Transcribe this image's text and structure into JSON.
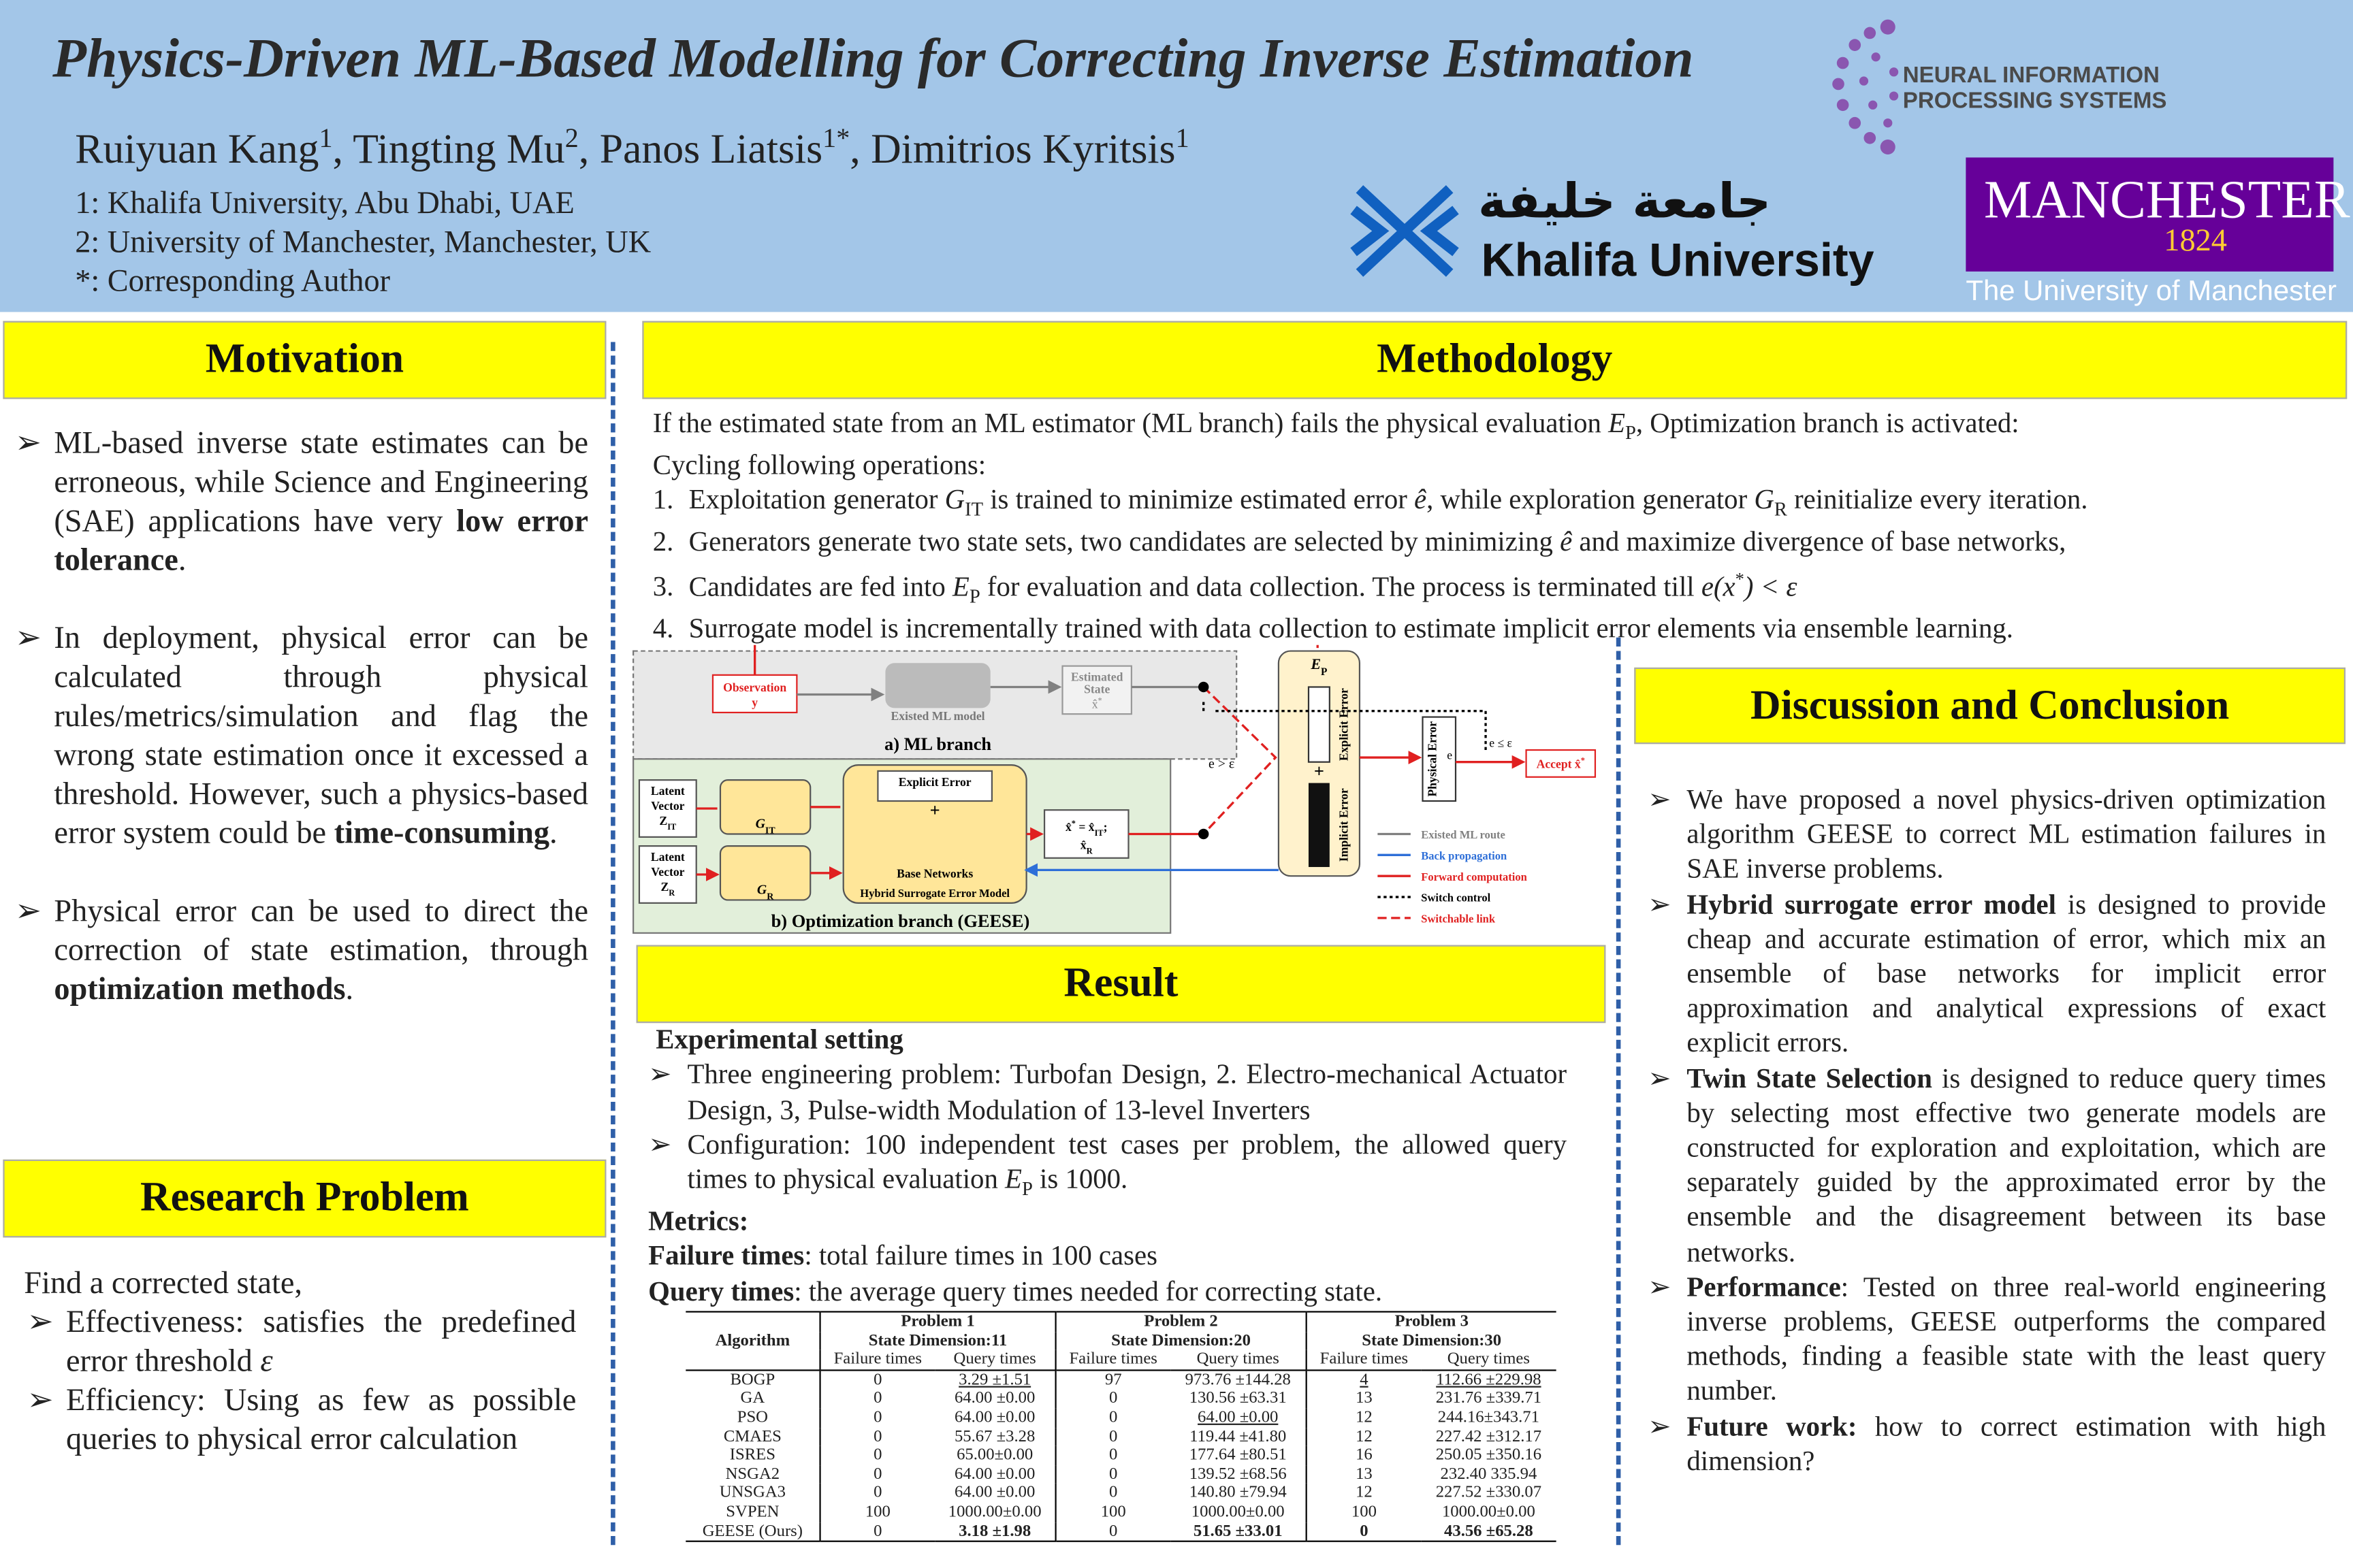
{
  "header": {
    "title": "Physics-Driven ML-Based Modelling for Correcting Inverse Estimation",
    "authors": [
      "Ruiyuan Kang",
      {
        "text": "1",
        "style": "sup"
      },
      ", Tingting Mu",
      {
        "text": "2",
        "style": "sup"
      },
      ", Panos Liatsis",
      {
        "text": "1*",
        "style": "sup"
      },
      ", Dimitrios Kyritsis",
      {
        "text": "1",
        "style": "sup"
      }
    ],
    "affiliations": [
      "1: Khalifa University, Abu Dhabi, UAE",
      "2: University of Manchester, Manchester, UK",
      "*: Corresponding Author"
    ],
    "logos": {
      "neurips": [
        "NEURAL INFORMATION",
        "PROCESSING SYSTEMS"
      ],
      "khalifa": {
        "arabic": "جامعة خليفة",
        "name": "Khalifa University"
      },
      "manchester": {
        "name": "MANCHESTER",
        "year": "1824",
        "caption": "The University of Manchester"
      }
    }
  },
  "motivation": {
    "title": "Motivation",
    "bullets": [
      [
        "ML-based inverse state estimates can be erroneous, while Science and Engineering (SAE) applications have very ",
        {
          "text": "low error tolerance",
          "style": "b"
        },
        "."
      ],
      [
        "In deployment, physical error can be calculated through physical rules/metrics/simulation and flag the wrong state estimation once it excessed a threshold. However, such a physics-based error system could be ",
        {
          "text": "time-consuming",
          "style": "b"
        },
        "."
      ],
      [
        "Physical error can be used to direct the correction of state estimation, through ",
        {
          "text": "optimization methods",
          "style": "b"
        },
        "."
      ]
    ]
  },
  "research": {
    "title": "Research Problem",
    "intro": "Find a corrected state,",
    "bullets": [
      [
        "Effectiveness: satisfies the predefined error threshold ",
        {
          "text": "ε",
          "style": "i"
        }
      ],
      [
        "Efficiency: Using as few as possible queries to physical error calculation"
      ]
    ]
  },
  "methodology": {
    "title": "Methodology",
    "intro": [
      "If the estimated state from an ML estimator (ML branch) fails the physical evaluation ",
      {
        "text": "E",
        "style": "i"
      },
      {
        "text": "P",
        "style": "sub"
      },
      ", Optimization branch is activated:"
    ],
    "cycle": "Cycling following operations:",
    "steps": [
      {
        "num": "1.",
        "text": [
          "Exploitation generator ",
          {
            "text": "G",
            "style": "i"
          },
          {
            "text": "IT",
            "style": "sub"
          },
          " is trained to minimize estimated error ",
          {
            "text": "ê",
            "style": "i"
          },
          ", while exploration generator ",
          {
            "text": "G",
            "style": "i"
          },
          {
            "text": "R",
            "style": "sub"
          },
          " reinitialize every iteration."
        ]
      },
      {
        "num": "2.",
        "text": [
          "Generators generate two state sets, two candidates are selected by minimizing ",
          {
            "text": "ê",
            "style": "i"
          },
          " and maximize divergence of base networks,"
        ]
      },
      {
        "num": "3.",
        "text": [
          "Candidates are fed into ",
          {
            "text": "E",
            "style": "i"
          },
          {
            "text": "P",
            "style": "sub"
          },
          " for evaluation and data collection. The process is terminated till ",
          {
            "text": "e(x",
            "style": "i"
          },
          {
            "text": "*",
            "style": "sup"
          },
          {
            "text": ") < ε",
            "style": "i"
          }
        ]
      },
      {
        "num": "4.",
        "text": [
          "Surrogate model is incrementally trained with data collection to estimate implicit error elements via ensemble learning."
        ]
      }
    ],
    "diagram": {
      "observation": [
        "Observation",
        "y"
      ],
      "ml_model": "Existed ML model",
      "estimated": [
        "Estimated",
        "State",
        [
          "x̂",
          {
            "text": "*",
            "style": "sup"
          }
        ]
      ],
      "ml_branch": "a) ML branch",
      "ep": [
        {
          "text": "E",
          "style": "i"
        },
        {
          "text": "P",
          "style": "sub"
        }
      ],
      "implicit": "Implicit Error",
      "explicit": "Explicit Error",
      "plus": "+",
      "physical": "Physical Error",
      "e": "e",
      "accept_cond": "e ≤ ε",
      "accept": [
        "Accept ",
        "x̂",
        {
          "text": "*",
          "style": "sup"
        }
      ],
      "reject_cond": "e > ε",
      "latent_it": [
        "Latent",
        "Vector",
        [
          "Z",
          {
            "text": "IT",
            "style": "sub"
          }
        ]
      ],
      "latent_r": [
        "Latent",
        "Vector",
        [
          "Z",
          {
            "text": "R",
            "style": "sub"
          }
        ]
      ],
      "g_it": [
        {
          "text": "G",
          "style": "i"
        },
        {
          "text": "IT",
          "style": "sub"
        }
      ],
      "g_r": [
        {
          "text": "G",
          "style": "i"
        },
        {
          "text": "R",
          "style": "sub"
        }
      ],
      "hybrid_explicit": "Explicit Error",
      "hybrid_plus": "+",
      "base": "Base Networks",
      "hybrid": "Hybrid Surrogate Error Model",
      "candidates": [
        [
          "x̂",
          {
            "text": "*",
            "style": "sup"
          },
          " = x̂",
          {
            "text": "IT",
            "style": "sub"
          },
          ";"
        ],
        [
          "x̂",
          {
            "text": "R",
            "style": "sub"
          }
        ]
      ],
      "opt_branch": "b) Optimization branch (GEESE)",
      "legend": [
        {
          "name": "Existed ML route",
          "color": "#808080",
          "dash": "none"
        },
        {
          "name": "Back propagation",
          "color": "#2e6fd8",
          "dash": "none"
        },
        {
          "name": "Forward computation",
          "color": "#e02020",
          "dash": "none"
        },
        {
          "name": "Switch control",
          "color": "#000000",
          "dash": "2,2"
        },
        {
          "name": "Switchable link",
          "color": "#e02020",
          "dash": "6,3"
        }
      ]
    }
  },
  "result": {
    "title": "Result",
    "setting": "Experimental setting",
    "bullets": [
      [
        "Three engineering problem: Turbofan Design, 2. Electro-mechanical Actuator Design, 3, Pulse-width Modulation of 13-level Inverters"
      ],
      [
        "Configuration: 100 independent test cases per problem, the allowed query times to physical evaluation ",
        {
          "text": "E",
          "style": "i"
        },
        {
          "text": "P",
          "style": "sub"
        },
        " is 1000."
      ]
    ],
    "metrics_title": "Metrics:",
    "metrics": [
      [
        {
          "text": "Failure times",
          "style": "b"
        },
        ": total failure times in 100 cases"
      ],
      [
        {
          "text": "Query times",
          "style": "b"
        },
        ": the average query times needed for correcting state."
      ]
    ],
    "table": {
      "algorithm": "Algorithm",
      "problems": [
        {
          "name": "Problem 1",
          "dim": "State Dimension:11"
        },
        {
          "name": "Problem 2",
          "dim": "State Dimension:20"
        },
        {
          "name": "Problem 3",
          "dim": "State Dimension:30"
        }
      ],
      "sub": [
        "Failure times",
        "Query times"
      ],
      "rows": [
        [
          "BOGP",
          "0",
          "3.29 ±1.51",
          "97",
          "973.76 ±144.28",
          "4",
          "112.66 ±229.98"
        ],
        [
          "GA",
          "0",
          "64.00 ±0.00",
          "0",
          "130.56 ±63.31",
          "13",
          "231.76 ±339.71"
        ],
        [
          "PSO",
          "0",
          "64.00 ±0.00",
          "0",
          "64.00 ±0.00",
          "12",
          "244.16±343.71"
        ],
        [
          "CMAES",
          "0",
          "55.67 ±3.28",
          "0",
          "119.44 ±41.80",
          "12",
          "227.42 ±312.17"
        ],
        [
          "ISRES",
          "0",
          "65.00±0.00",
          "0",
          "177.64 ±80.51",
          "16",
          "250.05 ±350.16"
        ],
        [
          "NSGA2",
          "0",
          "64.00 ±0.00",
          "0",
          "139.52 ±68.56",
          "13",
          "232.40 335.94"
        ],
        [
          "UNSGA3",
          "0",
          "64.00 ±0.00",
          "0",
          "140.80 ±79.94",
          "12",
          "227.52 ±330.07"
        ],
        [
          "SVPEN",
          "100",
          "1000.00±0.00",
          "100",
          "1000.00±0.00",
          "100",
          "1000.00±0.00"
        ],
        [
          "GEESE (Ours)",
          "0",
          "3.18 ±1.98",
          "0",
          "51.65 ±33.01",
          "0",
          "43.56 ±65.28"
        ]
      ],
      "bold": [
        [
          8,
          2
        ],
        [
          8,
          4
        ],
        [
          8,
          5
        ],
        [
          8,
          6
        ]
      ],
      "underline": [
        [
          0,
          2
        ],
        [
          2,
          4
        ],
        [
          0,
          5
        ],
        [
          0,
          6
        ]
      ]
    }
  },
  "discussion": {
    "title": "Discussion and Conclusion",
    "bullets": [
      [
        "We have proposed a novel physics-driven optimization algorithm GEESE to correct ML estimation failures in SAE inverse problems."
      ],
      [
        {
          "text": "Hybrid surrogate error model",
          "style": "b"
        },
        " is designed to provide cheap and accurate estimation of error, which mix an ensemble of base networks for implicit error approximation and analytical expressions of exact explicit errors."
      ],
      [
        {
          "text": "Twin State Selection",
          "style": "b"
        },
        " is designed to reduce query times by selecting most effective two generate models are constructed for exploration and exploitation, which are separately guided by the approximated error by the ensemble and the disagreement between its base networks."
      ],
      [
        {
          "text": "Performance",
          "style": "b"
        },
        ": Tested on three real-world engineering inverse problems, GEESE outperforms the compared methods, finding a feasible state with the least query number."
      ],
      [
        {
          "text": "Future work: ",
          "style": "b"
        },
        " how to correct estimation with high dimension?"
      ]
    ]
  }
}
